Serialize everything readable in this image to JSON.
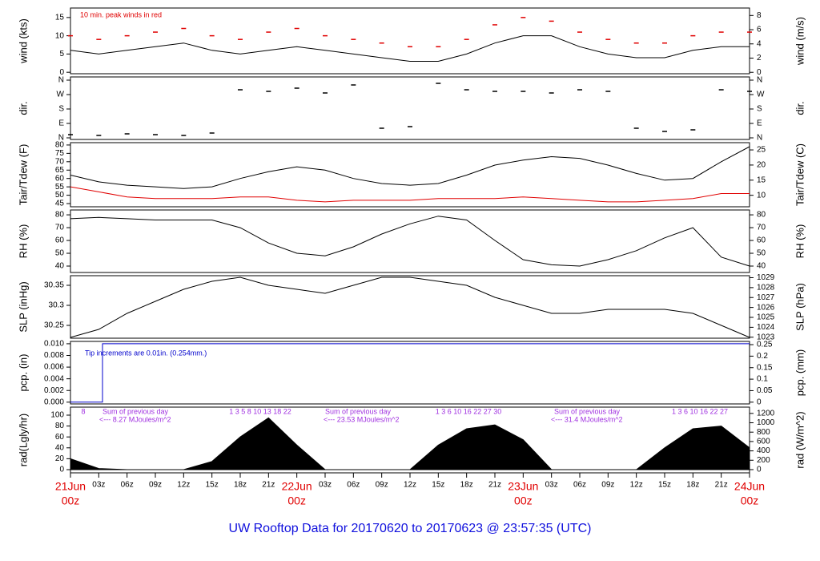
{
  "title": "UW Rooftop Data for 20170620  to  20170623 @ 23:57:35  (UTC)",
  "x_axis": {
    "xlim": [
      0,
      72
    ],
    "xticks": [
      {
        "value": 0,
        "label": "00z"
      },
      {
        "value": 3,
        "label": "03z"
      },
      {
        "value": 6,
        "label": "06z"
      },
      {
        "value": 9,
        "label": "09z"
      },
      {
        "value": 12,
        "label": "12z"
      },
      {
        "value": 15,
        "label": "15z"
      },
      {
        "value": 18,
        "label": "18z"
      },
      {
        "value": 21,
        "label": "21z"
      },
      {
        "value": 24,
        "label": "00z"
      },
      {
        "value": 27,
        "label": "03z"
      },
      {
        "value": 30,
        "label": "06z"
      },
      {
        "value": 33,
        "label": "09z"
      },
      {
        "value": 36,
        "label": "12z"
      },
      {
        "value": 39,
        "label": "15z"
      },
      {
        "value": 42,
        "label": "18z"
      },
      {
        "value": 45,
        "label": "21z"
      },
      {
        "value": 48,
        "label": "00z"
      },
      {
        "value": 51,
        "label": "03z"
      },
      {
        "value": 54,
        "label": "06z"
      },
      {
        "value": 57,
        "label": "09z"
      },
      {
        "value": 60,
        "label": "12z"
      },
      {
        "value": 63,
        "label": "15z"
      },
      {
        "value": 66,
        "label": "18z"
      },
      {
        "value": 69,
        "label": "21z"
      },
      {
        "value": 72,
        "label": "00z"
      }
    ],
    "date_labels": [
      {
        "value": 0,
        "label": "21Jun"
      },
      {
        "value": 24,
        "label": "22Jun"
      },
      {
        "value": 48,
        "label": "23Jun"
      },
      {
        "value": 72,
        "label": "24Jun"
      }
    ]
  },
  "chart_data": [
    {
      "type": "line",
      "ylabel": "wind (kts)",
      "y2label": "wind (m/s)",
      "annotations": [
        "10 min. peak winds in red"
      ],
      "ylim": [
        -0.4,
        17.6
      ],
      "yticks": [
        0,
        5,
        10,
        15
      ],
      "y2lim": [
        -0.2,
        9.05
      ],
      "y2ticks": [
        0,
        2,
        4,
        6,
        8
      ],
      "x": [
        0,
        3,
        6,
        9,
        12,
        15,
        18,
        21,
        24,
        27,
        30,
        33,
        36,
        39,
        42,
        45,
        48,
        51,
        54,
        57,
        60,
        63,
        66,
        69,
        72
      ],
      "series": [
        {
          "name": "wind",
          "color": "#000000",
          "style": "line",
          "values": [
            6,
            5,
            6,
            7,
            8,
            6,
            5,
            6,
            7,
            6,
            5,
            4,
            3,
            3,
            5,
            8,
            10,
            10,
            7,
            5,
            4,
            4,
            6,
            7,
            7
          ]
        },
        {
          "name": "peak",
          "color": "#e00000",
          "style": "dash",
          "values": [
            10,
            9,
            10,
            11,
            12,
            10,
            9,
            11,
            12,
            10,
            9,
            8,
            7,
            7,
            9,
            13,
            15,
            14,
            11,
            9,
            8,
            8,
            10,
            11,
            11
          ]
        }
      ]
    },
    {
      "type": "scatter",
      "ylabel": "dir.",
      "y2label": "dir.",
      "ylim": [
        -10,
        380
      ],
      "yticks": [
        {
          "value": 0,
          "label": "N"
        },
        {
          "value": 90,
          "label": "E"
        },
        {
          "value": 180,
          "label": "S"
        },
        {
          "value": 270,
          "label": "W"
        },
        {
          "value": 360,
          "label": "N"
        }
      ],
      "y2lim": [
        -10,
        380
      ],
      "y2ticks": [
        {
          "value": 0,
          "label": "N"
        },
        {
          "value": 90,
          "label": "E"
        },
        {
          "value": 180,
          "label": "S"
        },
        {
          "value": 270,
          "label": "W"
        },
        {
          "value": 360,
          "label": "N"
        }
      ],
      "x": [
        0,
        3,
        6,
        9,
        12,
        15,
        18,
        21,
        24,
        27,
        30,
        33,
        36,
        39,
        42,
        45,
        48,
        51,
        54,
        57,
        60,
        63,
        66,
        69,
        72
      ],
      "series": [
        {
          "name": "dir",
          "color": "#000000",
          "style": "dash",
          "values": [
            20,
            15,
            25,
            20,
            15,
            30,
            300,
            290,
            310,
            280,
            330,
            60,
            70,
            340,
            300,
            290,
            290,
            280,
            300,
            290,
            60,
            40,
            50,
            300,
            290
          ]
        }
      ]
    },
    {
      "type": "line",
      "ylabel": "Tair/Tdew (F)",
      "y2label": "Tair/Tdew (C)",
      "ylim": [
        43.1,
        81.4
      ],
      "yticks": [
        45,
        50,
        55,
        60,
        65,
        70,
        75,
        80
      ],
      "y2lim": [
        6.2,
        27.4
      ],
      "y2ticks": [
        10,
        15,
        20,
        25
      ],
      "x": [
        0,
        3,
        6,
        9,
        12,
        15,
        18,
        21,
        24,
        27,
        30,
        33,
        36,
        39,
        42,
        45,
        48,
        51,
        54,
        57,
        60,
        63,
        66,
        69,
        72
      ],
      "series": [
        {
          "name": "Tair",
          "color": "#000000",
          "style": "line",
          "values": [
            62,
            58,
            56,
            55,
            54,
            55,
            60,
            64,
            67,
            65,
            60,
            57,
            56,
            57,
            62,
            68,
            71,
            73,
            72,
            68,
            63,
            59,
            60,
            70,
            79
          ]
        },
        {
          "name": "Tdew",
          "color": "#e00000",
          "style": "line",
          "values": [
            55,
            52,
            49,
            48,
            48,
            48,
            49,
            49,
            47,
            46,
            47,
            47,
            47,
            48,
            48,
            48,
            49,
            48,
            47,
            46,
            46,
            47,
            48,
            51,
            51
          ]
        }
      ]
    },
    {
      "type": "line",
      "ylabel": "RH (%)",
      "y2label": "RH (%)",
      "ylim": [
        35,
        83.8
      ],
      "yticks": [
        40,
        50,
        60,
        70,
        80
      ],
      "y2lim": [
        35,
        83.8
      ],
      "y2ticks": [
        40,
        50,
        60,
        70,
        80
      ],
      "x": [
        0,
        3,
        6,
        9,
        12,
        15,
        18,
        21,
        24,
        27,
        30,
        33,
        36,
        39,
        42,
        45,
        48,
        51,
        54,
        57,
        60,
        63,
        66,
        69,
        72
      ],
      "series": [
        {
          "name": "RH",
          "color": "#000000",
          "style": "line",
          "values": [
            77,
            78,
            77,
            76,
            76,
            76,
            70,
            58,
            50,
            48,
            55,
            65,
            73,
            79,
            76,
            60,
            45,
            41,
            40,
            45,
            52,
            62,
            70,
            47,
            40
          ]
        }
      ]
    },
    {
      "type": "line",
      "ylabel": "SLP (inHg)",
      "y2label": "SLP (hPa)",
      "ylim": [
        30.218,
        30.374
      ],
      "yticks": [
        30.25,
        30.3,
        30.35
      ],
      "y2lim": [
        1022.9,
        1029.2
      ],
      "y2ticks": [
        1023,
        1024,
        1025,
        1026,
        1027,
        1028,
        1029
      ],
      "x": [
        0,
        3,
        6,
        9,
        12,
        15,
        18,
        21,
        24,
        27,
        30,
        33,
        36,
        39,
        42,
        45,
        48,
        51,
        54,
        57,
        60,
        63,
        66,
        69,
        72
      ],
      "series": [
        {
          "name": "SLP",
          "color": "#000000",
          "style": "line",
          "values": [
            30.22,
            30.24,
            30.28,
            30.31,
            30.34,
            30.36,
            30.37,
            30.35,
            30.34,
            30.33,
            30.35,
            30.37,
            30.37,
            30.36,
            30.35,
            30.32,
            30.3,
            30.28,
            30.28,
            30.29,
            30.29,
            30.29,
            30.28,
            30.25,
            30.22
          ]
        }
      ]
    },
    {
      "type": "line",
      "ylabel": "pcp. (in)",
      "y2label": "pcp. (mm)",
      "annotations": [
        "Tip increments are 0.01in. (0.254mm.)"
      ],
      "ylim": [
        -0.0003,
        0.0104
      ],
      "yticks": [
        {
          "value": 0,
          "label": "0.000"
        },
        {
          "value": 0.002,
          "label": "0.002"
        },
        {
          "value": 0.004,
          "label": "0.004"
        },
        {
          "value": 0.006,
          "label": "0.006"
        },
        {
          "value": 0.008,
          "label": "0.008"
        },
        {
          "value": 0.01,
          "label": "0.010"
        }
      ],
      "y2lim": [
        -0.0076,
        0.264
      ],
      "y2ticks": [
        0,
        0.05,
        0.1,
        0.15,
        0.2,
        0.25
      ],
      "x": [
        0,
        3.4,
        3.4,
        72
      ],
      "series": [
        {
          "name": "pcp",
          "color": "#0000cc",
          "style": "line",
          "values": [
            0,
            0,
            0.01,
            0.01
          ]
        }
      ]
    },
    {
      "type": "area",
      "ylabel": "rad(Lgly/hr)",
      "y2label": "rad (W/m^2)",
      "annotations": [
        "8",
        "Sum of previous day",
        "<--- 8.27 MJoules/m^2",
        "1  3  5  8  10  13  18  22",
        "Sum of previous day",
        "<--- 23.53 MJoules/m^2",
        "1  3  6  10  16  22  27  30",
        "Sum of previous day",
        "<--- 31.4 MJoules/m^2",
        "1  3  6  10  16  22  27"
      ],
      "ylim": [
        -5.9,
        114.7
      ],
      "yticks": [
        0,
        20,
        40,
        60,
        80,
        100
      ],
      "y2lim": [
        -69,
        1334
      ],
      "y2ticks": [
        0,
        200,
        400,
        600,
        800,
        1000,
        1200
      ],
      "x": [
        0,
        3,
        6,
        9,
        12,
        15,
        18,
        21,
        24,
        27,
        30,
        33,
        36,
        39,
        42,
        45,
        48,
        51,
        54,
        57,
        60,
        63,
        66,
        69,
        72
      ],
      "series": [
        {
          "name": "rad",
          "color": "#000000",
          "style": "area",
          "values": [
            20,
            2,
            0,
            0,
            0,
            15,
            60,
            95,
            45,
            0,
            0,
            0,
            0,
            45,
            75,
            82,
            55,
            0,
            0,
            0,
            0,
            40,
            75,
            80,
            40
          ]
        }
      ]
    }
  ]
}
